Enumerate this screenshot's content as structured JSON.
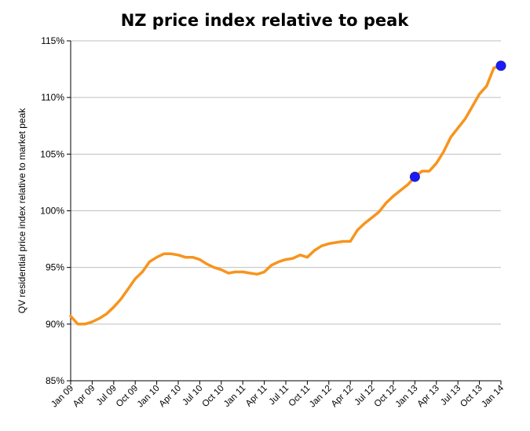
{
  "chart_data": {
    "type": "line",
    "title": "NZ price index relative to peak",
    "xlabel": "",
    "ylabel": "QV residential price index relative to market peak",
    "ylim": [
      85,
      115
    ],
    "yticks": [
      85,
      90,
      95,
      100,
      105,
      110,
      115
    ],
    "ytick_labels": [
      "85%",
      "90%",
      "95%",
      "100%",
      "105%",
      "110%",
      "115%"
    ],
    "x_tick_labels": [
      "Jan 09",
      "Apr 09",
      "Jul 09",
      "Oct 09",
      "Jan 10",
      "Apr 10",
      "Jul 10",
      "Oct 10",
      "Jan 11",
      "Apr 11",
      "Jul 11",
      "Oct 11",
      "Jan 12",
      "Apr 12",
      "Jul 12",
      "Oct 12",
      "Jan 13",
      "Apr 13",
      "Jul 13",
      "Oct 13",
      "Jan 14"
    ],
    "grid": true,
    "legend": "none",
    "line_color": "#f7941d",
    "marker_color": "#1a1aff",
    "series": [
      {
        "x": [
          "Jan 09",
          "Feb 09",
          "Mar 09",
          "Apr 09",
          "May 09",
          "Jun 09",
          "Jul 09",
          "Aug 09",
          "Sep 09",
          "Oct 09",
          "Nov 09",
          "Dec 09",
          "Jan 10",
          "Feb 10",
          "Mar 10",
          "Apr 10",
          "May 10",
          "Jun 10",
          "Jul 10",
          "Aug 10",
          "Sep 10",
          "Oct 10",
          "Nov 10",
          "Dec 10",
          "Jan 11",
          "Feb 11",
          "Mar 11",
          "Apr 11",
          "May 11",
          "Jun 11",
          "Jul 11",
          "Aug 11",
          "Sep 11",
          "Oct 11",
          "Nov 11",
          "Dec 11",
          "Jan 12",
          "Feb 12",
          "Mar 12",
          "Apr 12",
          "May 12",
          "Jun 12",
          "Jul 12",
          "Aug 12",
          "Sep 12",
          "Oct 12",
          "Nov 12",
          "Dec 12",
          "Jan 13",
          "Feb 13",
          "Mar 13",
          "Apr 13",
          "May 13",
          "Jun 13",
          "Jul 13",
          "Aug 13",
          "Sep 13",
          "Oct 13",
          "Nov 13",
          "Dec 13",
          "Jan 14"
        ],
        "values": [
          90.7,
          90.0,
          90.0,
          90.2,
          90.5,
          90.9,
          91.5,
          92.2,
          93.1,
          94.0,
          94.6,
          95.5,
          95.9,
          96.2,
          96.2,
          96.1,
          95.9,
          95.9,
          95.7,
          95.3,
          95.0,
          94.8,
          94.5,
          94.6,
          94.6,
          94.5,
          94.4,
          94.6,
          95.2,
          95.5,
          95.7,
          95.8,
          96.1,
          95.9,
          96.5,
          96.9,
          97.1,
          97.2,
          97.3,
          97.3,
          98.3,
          98.9,
          99.4,
          99.9,
          100.7,
          101.3,
          101.8,
          102.3,
          103.0,
          103.5,
          103.5,
          104.2,
          105.2,
          106.5,
          107.3,
          108.1,
          109.2,
          110.3,
          111.0,
          112.6,
          112.8
        ]
      }
    ],
    "markers": [
      {
        "x": "Jan 13",
        "y": 103.0
      },
      {
        "x": "Jan 14",
        "y": 112.8
      }
    ]
  }
}
